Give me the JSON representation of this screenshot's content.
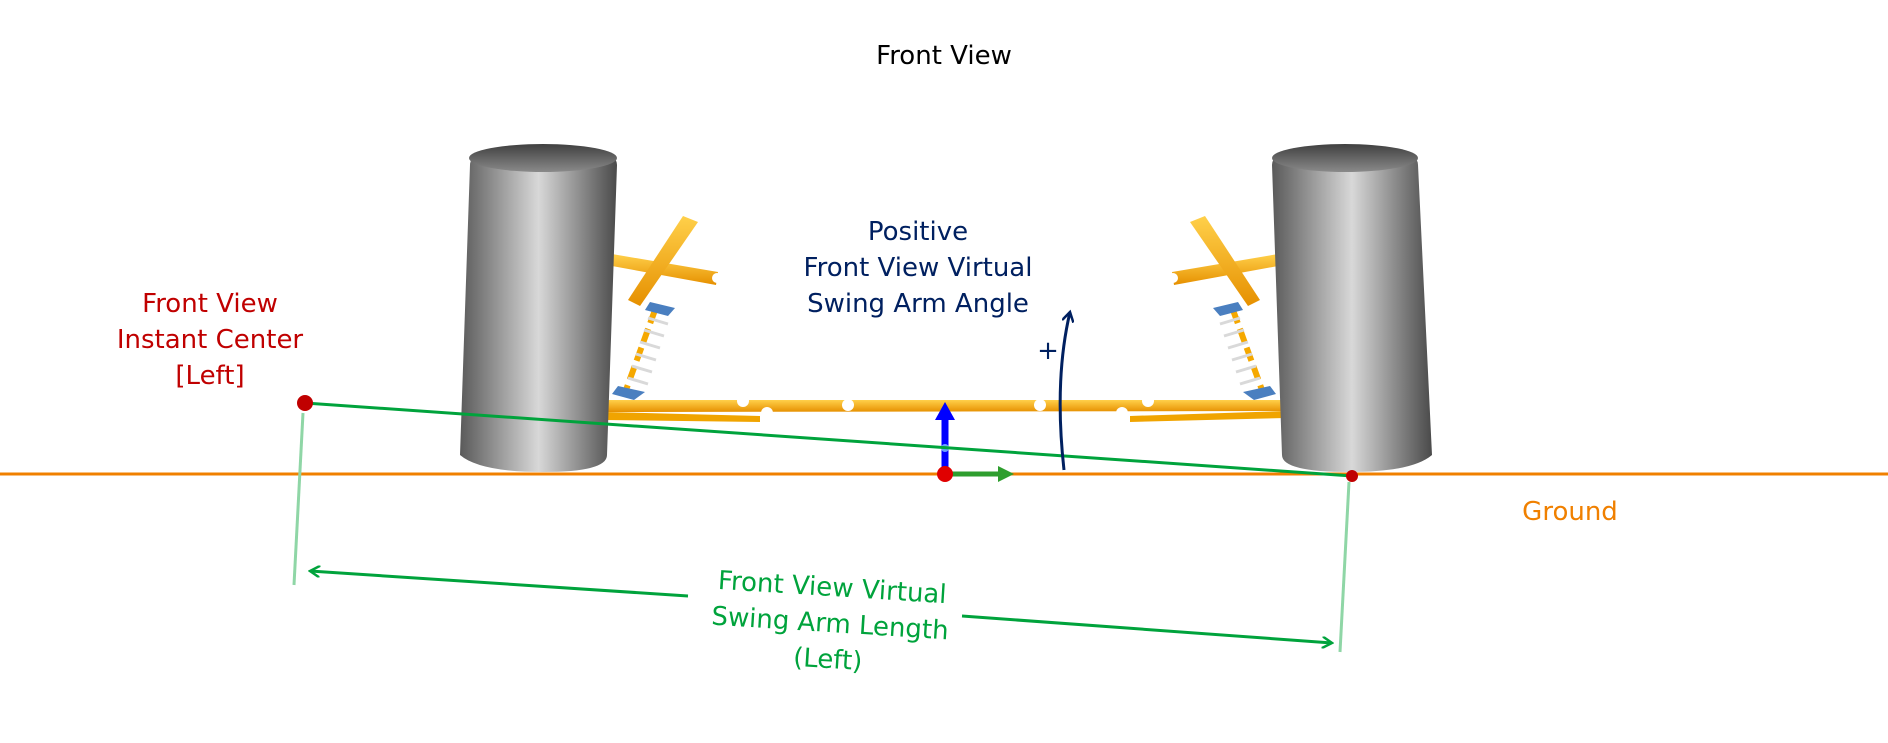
{
  "title": "Front View",
  "labels": {
    "instant_center": [
      "Front View",
      "Instant Center",
      "[Left]"
    ],
    "swing_arm_angle": [
      "Positive",
      "Front View Virtual",
      "Swing Arm Angle"
    ],
    "plus_sign": "+",
    "ground": "Ground",
    "swing_arm_length": [
      "Front View Virtual",
      "Swing Arm Length",
      "(Left)"
    ]
  },
  "colors": {
    "ground_line": "#f08000",
    "instant_center": "#c00000",
    "swing_arm": "#00a33c",
    "angle": "#002060",
    "suspension_arms": "#f5a800",
    "tire": "#6e6e6e",
    "axis_z": "#0000ff",
    "axis_x": "#2e9e2e",
    "origin": "#e00000"
  },
  "icons": [
    "tire-left",
    "tire-right",
    "coilover-spring",
    "coordinate-axes",
    "angle-arrow",
    "dimension-arrow"
  ]
}
